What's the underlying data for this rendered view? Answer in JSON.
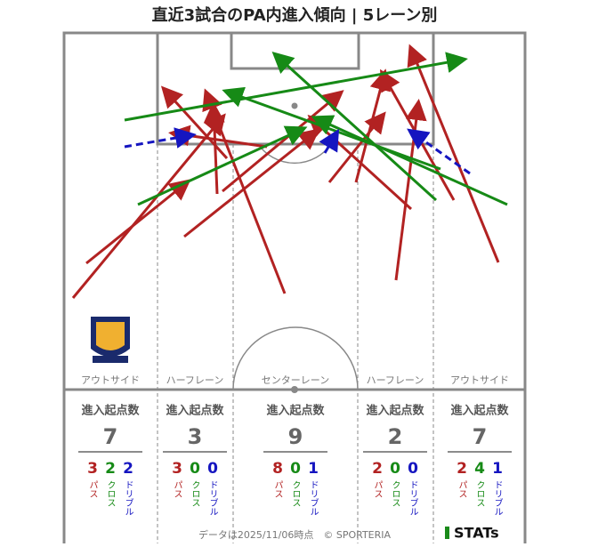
{
  "title": "直近3試合のPA内進入傾向 | 5レーン別",
  "kinds": {
    "pass": "パス",
    "cross": "クロス",
    "dribble": "ドリブル"
  },
  "lanes": [
    {
      "name": "アウトサイド",
      "heading": "進入起点数",
      "total": 7,
      "pass": 3,
      "cross": 2,
      "dribble": 2
    },
    {
      "name": "ハーフレーン",
      "heading": "進入起点数",
      "total": 3,
      "pass": 3,
      "cross": 0,
      "dribble": 0
    },
    {
      "name": "センターレーン",
      "heading": "進入起点数",
      "total": 9,
      "pass": 8,
      "cross": 0,
      "dribble": 1
    },
    {
      "name": "ハーフレーン",
      "heading": "進入起点数",
      "total": 2,
      "pass": 2,
      "cross": 0,
      "dribble": 0
    },
    {
      "name": "アウトサイド",
      "heading": "進入起点数",
      "total": 7,
      "pass": 2,
      "cross": 4,
      "dribble": 1
    }
  ],
  "footer": "データは2025/11/06時点　© SPORTERIA",
  "brand": "STATs"
}
